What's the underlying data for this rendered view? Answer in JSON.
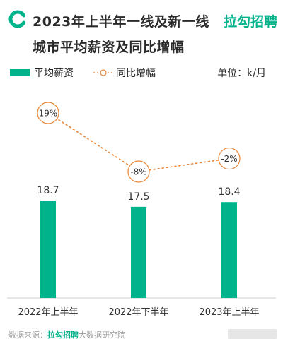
{
  "header": {
    "title_line1": "2023年上半年一线及新一线",
    "title_line2": "城市平均薪资及同比增幅",
    "brand": "拉勾招聘",
    "brand_color": "#00b38a"
  },
  "legend": {
    "bar_label": "平均薪资",
    "line_label": "同比增幅",
    "unit": "单位：k/月"
  },
  "footer": {
    "prefix": "数据来源：",
    "brand": "拉勾招聘",
    "suffix": "大数据研究院"
  },
  "chart_data": {
    "type": "bar",
    "categories": [
      "2022年上半年",
      "2022年下半年",
      "2023年上半年"
    ],
    "series": [
      {
        "name": "平均薪资",
        "type": "bar",
        "values": [
          18.7,
          17.5,
          18.4
        ],
        "labels": [
          "18.7",
          "17.5",
          "18.4"
        ],
        "color": "#00b38a"
      },
      {
        "name": "同比增幅",
        "type": "line",
        "values": [
          19,
          -8,
          -2
        ],
        "labels": [
          "19%",
          "-8%",
          "-2%"
        ],
        "color": "#e8873a"
      }
    ],
    "ylabel": "",
    "grid": false,
    "legend_position": "top-left"
  }
}
